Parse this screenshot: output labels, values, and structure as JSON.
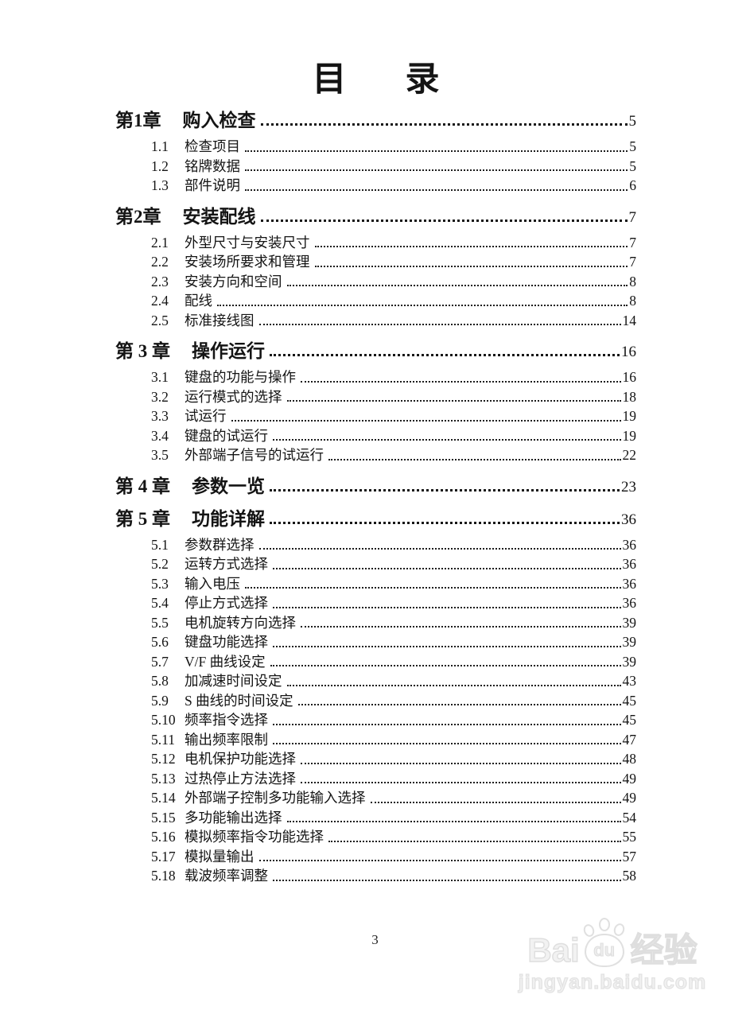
{
  "header": {
    "title_left": "目",
    "title_right": "录"
  },
  "toc": {
    "chapters": [
      {
        "label": "第1章",
        "title": "购入检查",
        "page": "5",
        "sections": [
          {
            "num": "1.1",
            "title": "检查项目",
            "page": "5"
          },
          {
            "num": "1.2",
            "title": "铭牌数据",
            "page": "5"
          },
          {
            "num": "1.3",
            "title": "部件说明",
            "page": "6"
          }
        ]
      },
      {
        "label": "第2章",
        "title": "安装配线",
        "page": "7",
        "sections": [
          {
            "num": "2.1",
            "title": "外型尺寸与安装尺寸",
            "page": "7"
          },
          {
            "num": "2.2",
            "title": "安装场所要求和管理",
            "page": "7"
          },
          {
            "num": "2.3",
            "title": "安装方向和空间",
            "page": "8"
          },
          {
            "num": "2.4",
            "title": "配线",
            "page": "8"
          },
          {
            "num": "2.5",
            "title": "标准接线图",
            "page": "14"
          }
        ]
      },
      {
        "label": "第 3 章",
        "title": "操作运行",
        "page": "16",
        "sections": [
          {
            "num": "3.1",
            "title": "键盘的功能与操作",
            "page": "16"
          },
          {
            "num": "3.2",
            "title": "运行模式的选择",
            "page": "18"
          },
          {
            "num": "3.3",
            "title": "试运行",
            "page": "19"
          },
          {
            "num": "3.4",
            "title": "键盘的试运行",
            "page": "19"
          },
          {
            "num": "3.5",
            "title": "外部端子信号的试运行",
            "page": "22"
          }
        ]
      },
      {
        "label": "第 4 章",
        "title": "参数一览",
        "page": "23",
        "sections": []
      },
      {
        "label": "第 5 章",
        "title": "功能详解",
        "page": "36",
        "sections": [
          {
            "num": "5.1",
            "title": "参数群选择",
            "page": "36"
          },
          {
            "num": "5.2",
            "title": "运转方式选择",
            "page": "36"
          },
          {
            "num": "5.3",
            "title": "输入电压",
            "page": "36"
          },
          {
            "num": "5.4",
            "title": "停止方式选择",
            "page": "36"
          },
          {
            "num": "5.5",
            "title": "电机旋转方向选择",
            "page": "39"
          },
          {
            "num": "5.6",
            "title": "键盘功能选择",
            "page": "39"
          },
          {
            "num": "5.7",
            "title": "V/F 曲线设定",
            "page": "39"
          },
          {
            "num": "5.8",
            "title": "加减速时间设定",
            "page": "43"
          },
          {
            "num": "5.9",
            "title": "S 曲线的时间设定",
            "page": "45"
          },
          {
            "num": "5.10",
            "title": "频率指令选择",
            "page": "45"
          },
          {
            "num": "5.11",
            "title": "输出频率限制",
            "page": "47"
          },
          {
            "num": "5.12",
            "title": "电机保护功能选择",
            "page": "48"
          },
          {
            "num": "5.13",
            "title": "过热停止方法选择",
            "page": "49"
          },
          {
            "num": "5.14",
            "title": "外部端子控制多功能输入选择",
            "page": "49"
          },
          {
            "num": "5.15",
            "title": "多功能输出选择",
            "page": "54"
          },
          {
            "num": "5.16",
            "title": "模拟频率指令功能选择",
            "page": "55"
          },
          {
            "num": "5.17",
            "title": "模拟量输出",
            "page": "57"
          },
          {
            "num": "5.18",
            "title": "载波频率调整",
            "page": "58"
          }
        ]
      }
    ]
  },
  "footer": {
    "page_number": "3"
  },
  "watermark": {
    "bai": "Bai",
    "du": "du",
    "suffix": "经验",
    "url": "jingyan.baidu.com"
  }
}
